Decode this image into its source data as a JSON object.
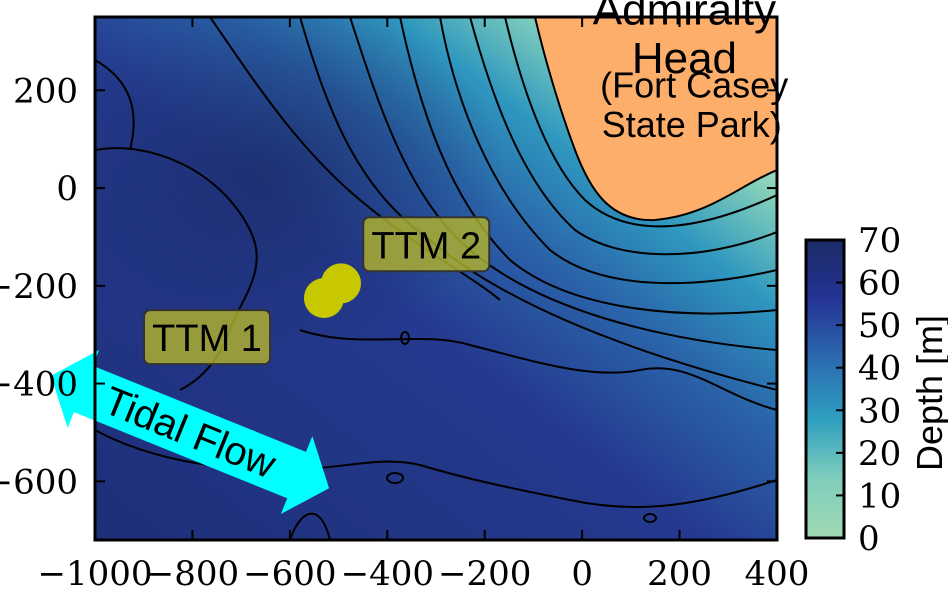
{
  "chart_data": {
    "type": "heatmap",
    "title": "",
    "xlabel": "",
    "ylabel": "",
    "xlim": [
      -1000,
      400
    ],
    "ylim": [
      -720,
      350
    ],
    "x_ticks": [
      -1000,
      -800,
      -600,
      -400,
      -200,
      0,
      200,
      400
    ],
    "y_ticks": [
      200,
      0,
      -200,
      -400,
      -600
    ],
    "x_tick_labels": [
      "−1000",
      "−800",
      "−600",
      "−400",
      "−200",
      "0",
      "200",
      "400"
    ],
    "y_tick_labels": [
      "200",
      "0",
      "−200",
      "−400",
      "−600"
    ],
    "colorbar": {
      "label": "Depth [m]",
      "min": 0,
      "max": 70,
      "ticks": [
        0,
        10,
        20,
        30,
        40,
        50,
        60,
        70
      ],
      "tick_labels": [
        "0",
        "10",
        "20",
        "30",
        "40",
        "50",
        "60",
        "70"
      ],
      "colors": [
        "#a1dab4",
        "#41b6c4",
        "#2c7fb8",
        "#253494",
        "#1b2a66"
      ]
    },
    "land_color": "#fdae6b",
    "grid": false,
    "points": [
      {
        "label": "TTM 1",
        "x": -530,
        "y": -225,
        "label_x": -770,
        "label_y": -305
      },
      {
        "label": "TTM 2",
        "x": -495,
        "y": -195,
        "label_x": -320,
        "label_y": -115
      }
    ],
    "annotations": [
      {
        "text": "Admiralty",
        "x": 210,
        "y": 335
      },
      {
        "text": "Head",
        "x": 210,
        "y": 235
      },
      {
        "text": "(Fort Casey",
        "x": 230,
        "y": 185
      },
      {
        "text": "State Park)",
        "x": 225,
        "y": 105
      }
    ],
    "arrow": {
      "text": "Tidal Flow",
      "color": "#00ffff"
    }
  }
}
